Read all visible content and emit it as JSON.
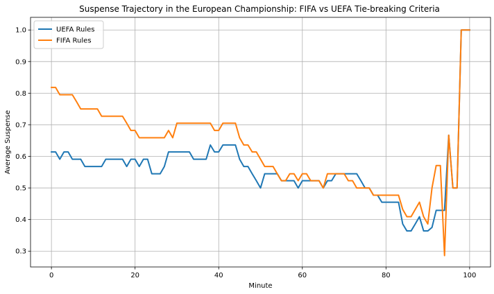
{
  "chart_data": {
    "type": "line",
    "title": "Suspense Trajectory in the European Championship: FIFA vs UEFA Tie-breaking Criteria",
    "xlabel": "Minute",
    "ylabel": "Average Suspense",
    "xlim": [
      -5,
      105
    ],
    "ylim": [
      0.25,
      1.04
    ],
    "xticks": [
      0,
      20,
      40,
      60,
      80,
      100
    ],
    "yticks": [
      0.3,
      0.4,
      0.5,
      0.6,
      0.7,
      0.8,
      0.9,
      1.0
    ],
    "ytick_labels": [
      "0.3",
      "0.4",
      "0.5",
      "0.6",
      "0.7",
      "0.8",
      "0.9",
      "1.0"
    ],
    "grid": true,
    "legend_position": "upper-left",
    "series": [
      {
        "name": "UEFA Rules",
        "color": "#1f77b4",
        "x": [
          0,
          1,
          2,
          3,
          4,
          5,
          6,
          7,
          8,
          9,
          10,
          11,
          12,
          13,
          14,
          15,
          16,
          17,
          18,
          19,
          20,
          21,
          22,
          23,
          24,
          25,
          26,
          27,
          28,
          29,
          30,
          31,
          32,
          33,
          34,
          35,
          36,
          37,
          38,
          39,
          40,
          41,
          42,
          43,
          44,
          45,
          46,
          47,
          48,
          49,
          50,
          51,
          52,
          53,
          54,
          55,
          56,
          57,
          58,
          59,
          60,
          61,
          62,
          63,
          64,
          65,
          66,
          67,
          68,
          69,
          70,
          71,
          72,
          73,
          74,
          75,
          76,
          77,
          78,
          79,
          80,
          81,
          82,
          83,
          84,
          85,
          86,
          87,
          88,
          89,
          90,
          91,
          92,
          93,
          94,
          95,
          96,
          97,
          98,
          99,
          100
        ],
        "y": [
          0.614,
          0.614,
          0.591,
          0.614,
          0.614,
          0.591,
          0.591,
          0.591,
          0.568,
          0.568,
          0.568,
          0.568,
          0.568,
          0.591,
          0.591,
          0.591,
          0.591,
          0.591,
          0.568,
          0.591,
          0.591,
          0.568,
          0.591,
          0.591,
          0.545,
          0.545,
          0.545,
          0.568,
          0.614,
          0.614,
          0.614,
          0.614,
          0.614,
          0.614,
          0.591,
          0.591,
          0.591,
          0.591,
          0.636,
          0.614,
          0.614,
          0.636,
          0.636,
          0.636,
          0.636,
          0.591,
          0.568,
          0.568,
          0.545,
          0.523,
          0.5,
          0.545,
          0.545,
          0.545,
          0.545,
          0.523,
          0.523,
          0.523,
          0.523,
          0.5,
          0.523,
          0.523,
          0.523,
          0.523,
          0.523,
          0.5,
          0.523,
          0.523,
          0.545,
          0.545,
          0.545,
          0.545,
          0.545,
          0.545,
          0.523,
          0.5,
          0.5,
          0.477,
          0.477,
          0.455,
          0.455,
          0.455,
          0.455,
          0.455,
          0.386,
          0.364,
          0.364,
          0.386,
          0.409,
          0.364,
          0.364,
          0.375,
          0.429,
          0.429,
          0.429,
          0.667,
          0.5,
          0.5,
          1.0,
          1.0,
          1.0
        ]
      },
      {
        "name": "FIFA Rules",
        "color": "#ff7f0e",
        "x": [
          0,
          1,
          2,
          3,
          4,
          5,
          6,
          7,
          8,
          9,
          10,
          11,
          12,
          13,
          14,
          15,
          16,
          17,
          18,
          19,
          20,
          21,
          22,
          23,
          24,
          25,
          26,
          27,
          28,
          29,
          30,
          31,
          32,
          33,
          34,
          35,
          36,
          37,
          38,
          39,
          40,
          41,
          42,
          43,
          44,
          45,
          46,
          47,
          48,
          49,
          50,
          51,
          52,
          53,
          54,
          55,
          56,
          57,
          58,
          59,
          60,
          61,
          62,
          63,
          64,
          65,
          66,
          67,
          68,
          69,
          70,
          71,
          72,
          73,
          74,
          75,
          76,
          77,
          78,
          79,
          80,
          81,
          82,
          83,
          84,
          85,
          86,
          87,
          88,
          89,
          90,
          91,
          92,
          93,
          94,
          95,
          96,
          97,
          98,
          99,
          100
        ],
        "y": [
          0.818,
          0.818,
          0.795,
          0.795,
          0.795,
          0.795,
          0.773,
          0.75,
          0.75,
          0.75,
          0.75,
          0.75,
          0.727,
          0.727,
          0.727,
          0.727,
          0.727,
          0.727,
          0.705,
          0.682,
          0.682,
          0.659,
          0.659,
          0.659,
          0.659,
          0.659,
          0.659,
          0.659,
          0.682,
          0.659,
          0.705,
          0.705,
          0.705,
          0.705,
          0.705,
          0.705,
          0.705,
          0.705,
          0.705,
          0.682,
          0.682,
          0.705,
          0.705,
          0.705,
          0.705,
          0.659,
          0.636,
          0.636,
          0.614,
          0.614,
          0.591,
          0.568,
          0.568,
          0.568,
          0.545,
          0.523,
          0.523,
          0.545,
          0.545,
          0.523,
          0.545,
          0.545,
          0.523,
          0.523,
          0.523,
          0.5,
          0.545,
          0.545,
          0.545,
          0.545,
          0.545,
          0.523,
          0.523,
          0.5,
          0.5,
          0.5,
          0.5,
          0.477,
          0.477,
          0.477,
          0.477,
          0.477,
          0.477,
          0.477,
          0.432,
          0.409,
          0.409,
          0.432,
          0.455,
          0.409,
          0.386,
          0.5,
          0.571,
          0.571,
          0.286,
          0.667,
          0.5,
          0.5,
          1.0,
          1.0,
          1.0
        ]
      }
    ]
  }
}
